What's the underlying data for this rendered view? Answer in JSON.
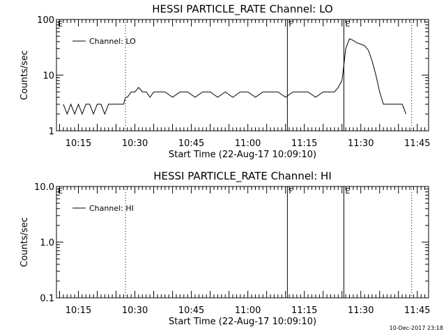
{
  "footer_date": "10-Dec-2017 23:18",
  "chart_data": [
    {
      "type": "line",
      "title": "HESSI PARTICLE_RATE Channel: LO",
      "xlabel": "Start Time (22-Aug-17 10:09:10)",
      "ylabel": "Counts/sec",
      "yscale": "log",
      "ylim": [
        1,
        100
      ],
      "xlim": [
        "10:09:10",
        "11:48:00"
      ],
      "ytick_labels": [
        "1",
        "10",
        "100"
      ],
      "xtick_labels": [
        "10:15",
        "10:30",
        "10:45",
        "11:00",
        "11:15",
        "11:30",
        "11:45"
      ],
      "grid": false,
      "legend": "top-left",
      "series": [
        {
          "name": "Channel: LO",
          "x": [
            "10:11:00",
            "10:12:00",
            "10:13:00",
            "10:14:00",
            "10:15:00",
            "10:16:00",
            "10:17:00",
            "10:18:00",
            "10:19:00",
            "10:20:00",
            "10:21:00",
            "10:22:00",
            "10:23:00",
            "10:24:00",
            "10:25:00",
            "10:26:00",
            "10:27:00",
            "10:27:30",
            "10:28:00",
            "10:29:00",
            "10:30:00",
            "10:31:00",
            "10:32:00",
            "10:33:00",
            "10:34:00",
            "10:35:00",
            "10:36:00",
            "10:38:00",
            "10:40:00",
            "10:42:00",
            "10:44:00",
            "10:46:00",
            "10:48:00",
            "10:50:00",
            "10:52:00",
            "10:54:00",
            "10:56:00",
            "10:58:00",
            "11:00:00",
            "11:02:00",
            "11:04:00",
            "11:06:00",
            "11:08:00",
            "11:10:00",
            "11:12:00",
            "11:14:00",
            "11:16:00",
            "11:18:00",
            "11:20:00",
            "11:21:00",
            "11:22:00",
            "11:23:00",
            "11:24:00",
            "11:25:00",
            "11:25:30",
            "11:26:00",
            "11:27:00",
            "11:28:00",
            "11:29:00",
            "11:30:00",
            "11:31:00",
            "11:32:00",
            "11:33:00",
            "11:34:00",
            "11:35:00",
            "11:36:00",
            "11:37:00",
            "11:38:00",
            "11:39:00",
            "11:40:00",
            "11:41:00",
            "11:42:00"
          ],
          "y": [
            3,
            2,
            3,
            2,
            3,
            2,
            3,
            3,
            2,
            3,
            3,
            2,
            3,
            3,
            3,
            3,
            3,
            4,
            4,
            5,
            5,
            6,
            5,
            5,
            4,
            5,
            5,
            5,
            4,
            5,
            5,
            4,
            5,
            5,
            4,
            5,
            4,
            5,
            5,
            4,
            5,
            5,
            5,
            4,
            5,
            5,
            5,
            4,
            5,
            5,
            5,
            5,
            6,
            8,
            15,
            30,
            45,
            42,
            38,
            36,
            34,
            28,
            18,
            10,
            5,
            3,
            3,
            3,
            3,
            3,
            3,
            2
          ]
        }
      ],
      "markers": [
        {
          "label": "E",
          "time": "10:09:10",
          "style": "dotted"
        },
        {
          "time": "10:27:30",
          "style": "dotted"
        },
        {
          "label": "F",
          "time": "11:10:30",
          "style": "solid"
        },
        {
          "label": "E",
          "time": "11:25:30",
          "style": "solid"
        },
        {
          "time": "11:43:30",
          "style": "dotted"
        }
      ]
    },
    {
      "type": "line",
      "title": "HESSI PARTICLE_RATE Channel: HI",
      "xlabel": "Start Time (22-Aug-17 10:09:10)",
      "ylabel": "Counts/sec",
      "yscale": "log",
      "ylim": [
        0.1,
        10
      ],
      "xlim": [
        "10:09:10",
        "11:48:00"
      ],
      "ytick_labels": [
        "0.1",
        "1.0",
        "10.0"
      ],
      "xtick_labels": [
        "10:15",
        "10:30",
        "10:45",
        "11:00",
        "11:15",
        "11:30",
        "11:45"
      ],
      "grid": false,
      "legend": "top-left",
      "series": [
        {
          "name": "Channel: HI",
          "x": [],
          "y": []
        }
      ],
      "markers": [
        {
          "label": "E",
          "time": "10:09:10",
          "style": "dotted"
        },
        {
          "time": "10:27:30",
          "style": "dotted"
        },
        {
          "label": "F",
          "time": "11:10:30",
          "style": "solid"
        },
        {
          "label": "E",
          "time": "11:25:30",
          "style": "solid"
        },
        {
          "time": "11:43:30",
          "style": "dotted"
        }
      ]
    }
  ]
}
